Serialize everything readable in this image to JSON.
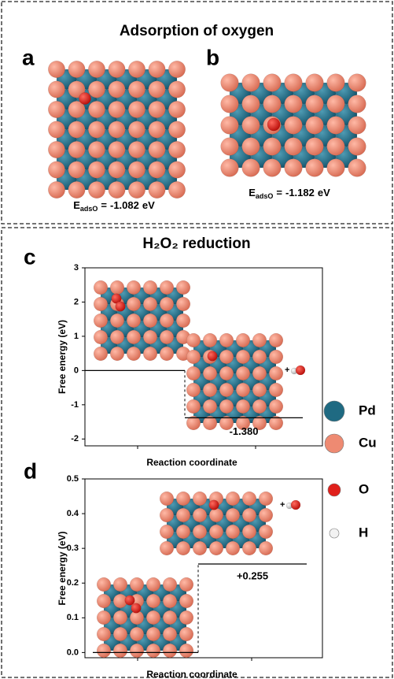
{
  "header": {
    "title": "Adsorption of oxygen",
    "section_title": "H₂O₂ reduction"
  },
  "panels": [
    {
      "label": "a",
      "energy": {
        "symbol": "E",
        "subscript": "adsO",
        "equals": "=",
        "value": -1.082,
        "unit": "eV"
      }
    },
    {
      "label": "b",
      "energy": {
        "symbol": "E",
        "subscript": "adsO",
        "equals": "=",
        "value": -1.182,
        "unit": "eV"
      }
    }
  ],
  "chart_data": [
    {
      "type": "step",
      "panel_label": "c",
      "x_label": "Reaction coordinate",
      "y_label": "Free energy (eV)",
      "categories": [
        null,
        null
      ],
      "values": [
        0,
        -1.38
      ],
      "value_labels": [
        null,
        "-1.380"
      ],
      "color": "#000000",
      "ylim": [
        -2.2,
        3
      ],
      "yticks": [
        -2,
        -1,
        0,
        1,
        2,
        3
      ],
      "product_label": "+"
    },
    {
      "type": "step",
      "panel_label": "d",
      "x_label": "Reaction coordinate",
      "y_label": "Free energy (eV)",
      "categories": [
        null,
        null
      ],
      "values": [
        0,
        0.255
      ],
      "value_labels": [
        null,
        "+0.255"
      ],
      "color": "#000000",
      "ylim": [
        -0.015,
        0.5
      ],
      "yticks": [
        {
          "value": 0,
          "label": "0.0"
        },
        0.1,
        0.2,
        0.3,
        0.4,
        {
          "value": 0.5,
          "label": "0.5"
        }
      ],
      "product_label": "+"
    }
  ],
  "legend": [
    {
      "name": "Pd",
      "color": "#1f6a82"
    },
    {
      "name": "Cu",
      "color": "#ee8a72"
    },
    {
      "name": "O",
      "color": "#e0201b"
    },
    {
      "name": "H",
      "color": "#f2f2f2"
    }
  ]
}
